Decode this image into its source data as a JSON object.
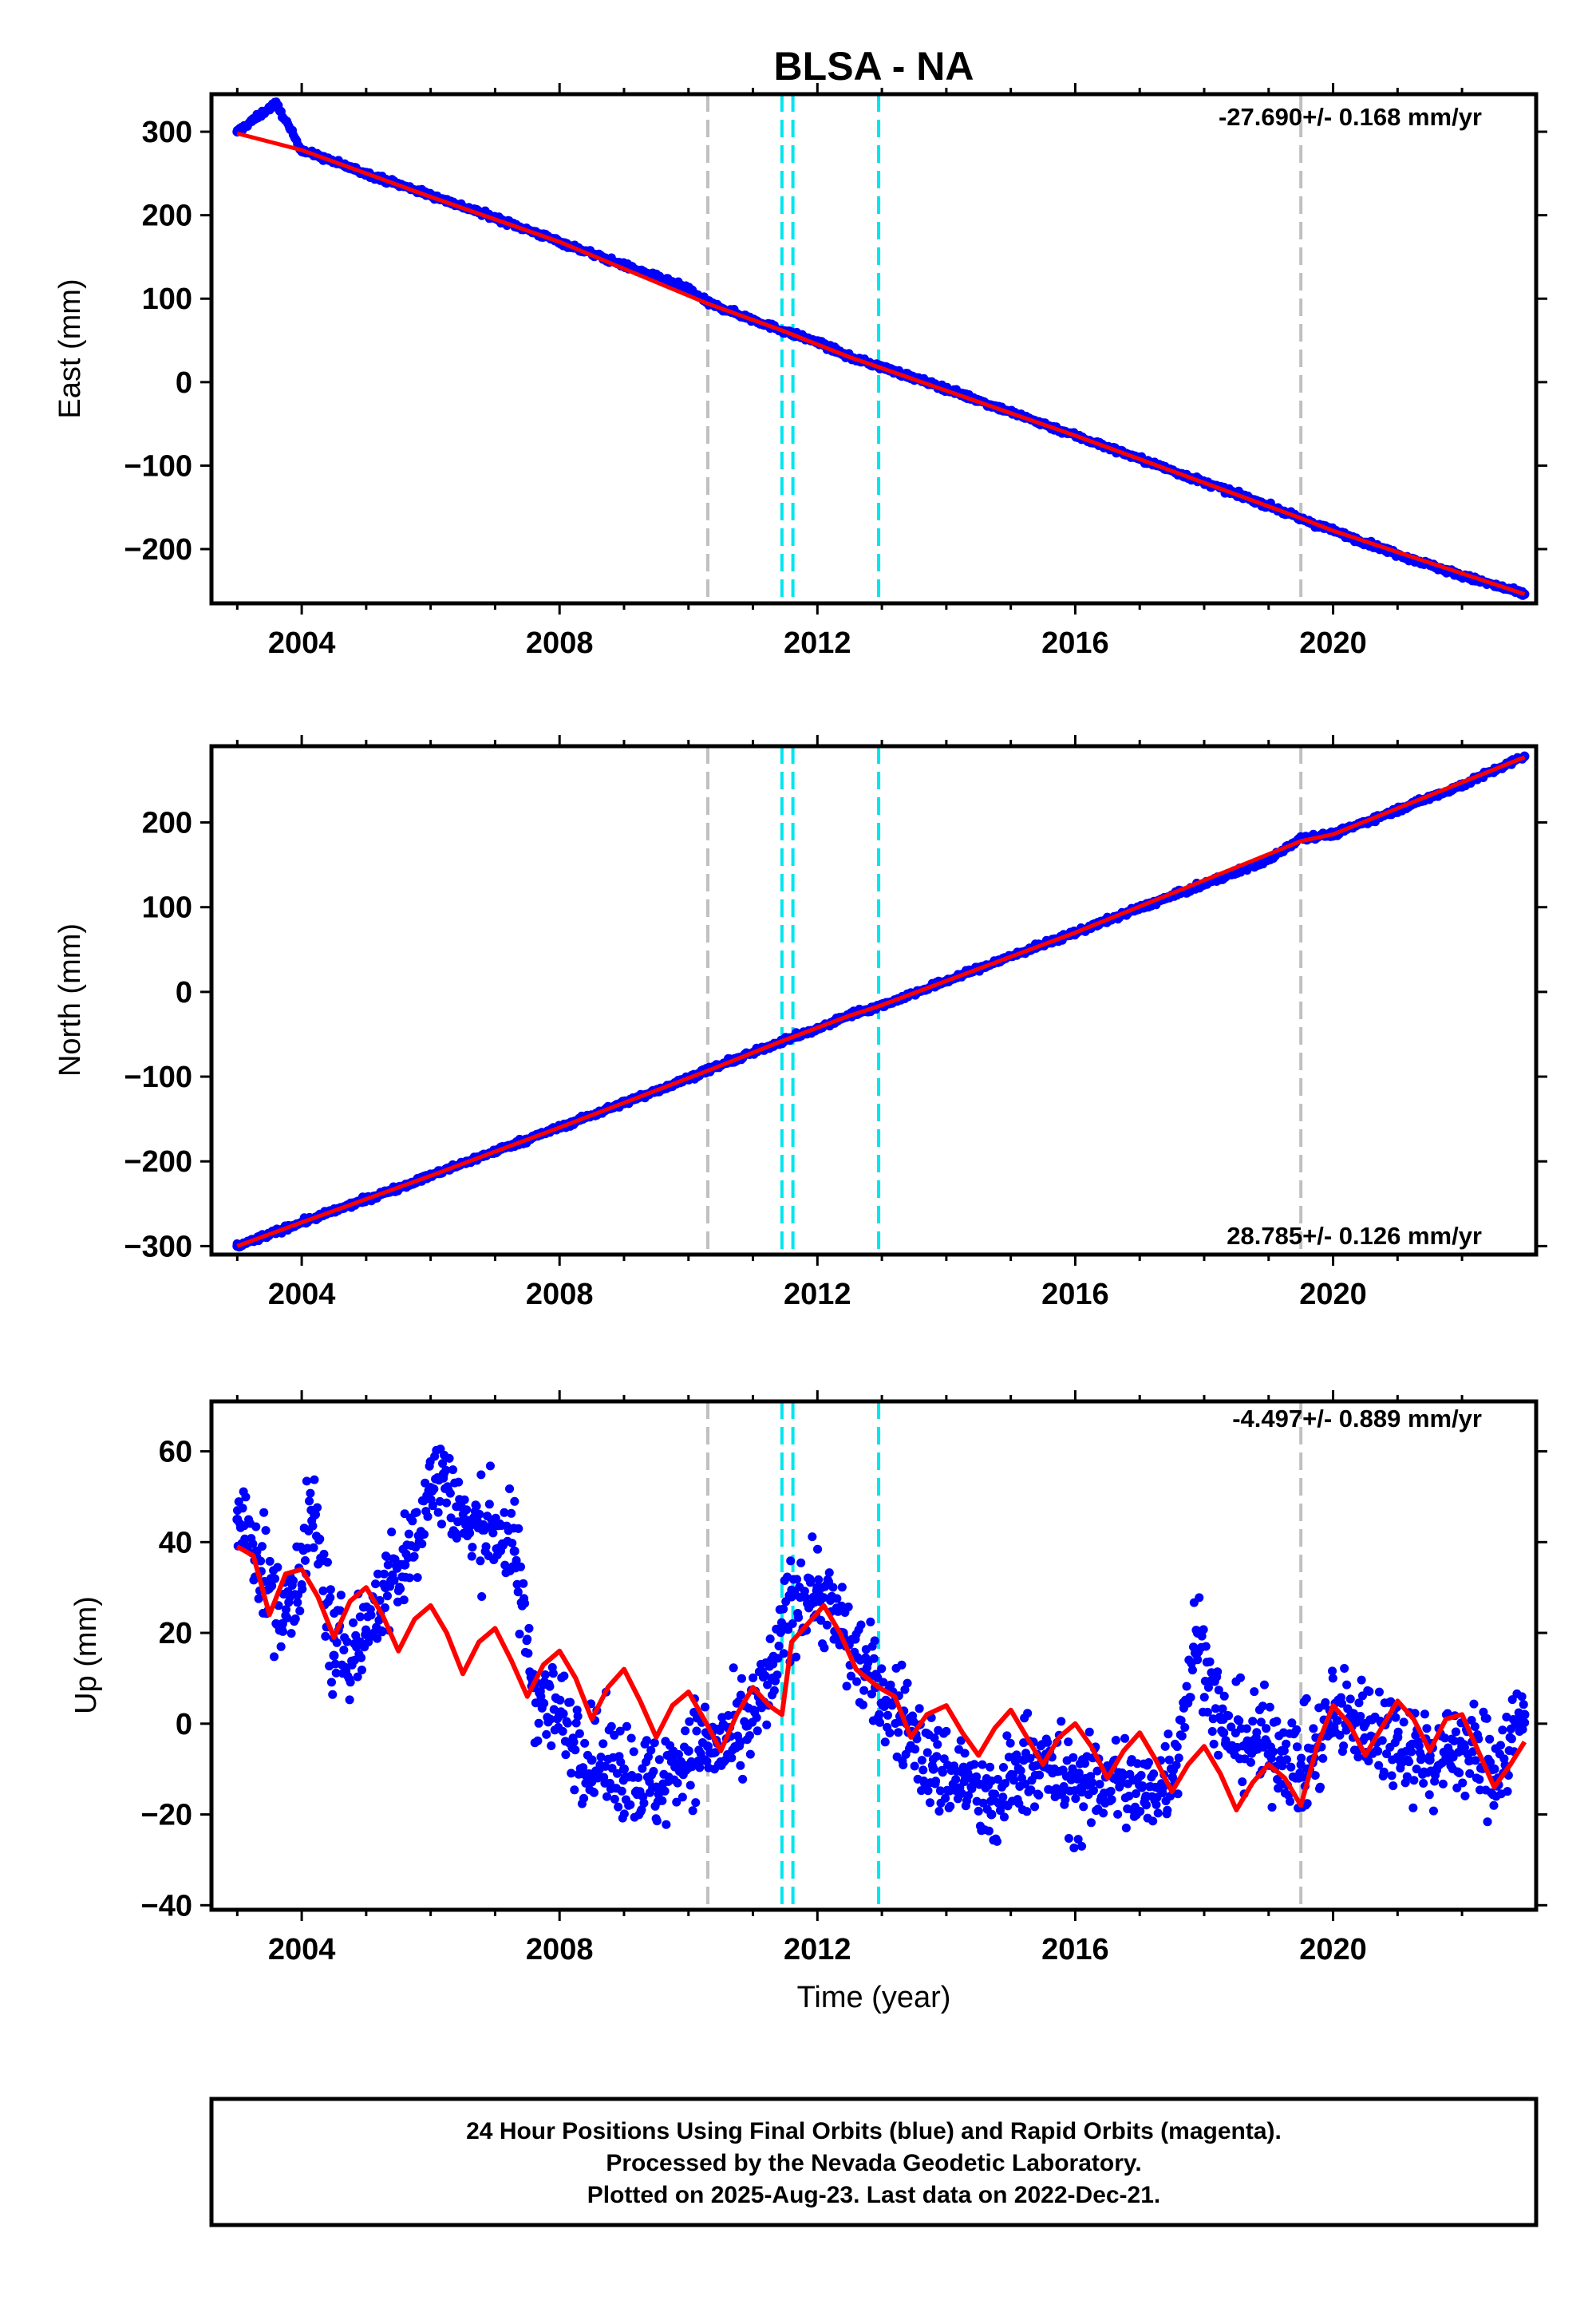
{
  "title": "BLSA - NA",
  "colors": {
    "final_orbits": "#0000ff",
    "model": "#ff0000",
    "gray_event": "#c0c0c0",
    "cyan_event": "#00e5ee"
  },
  "events": {
    "gray": [
      2010.3,
      2019.5
    ],
    "cyan": [
      2011.45,
      2011.62,
      2012.95
    ]
  },
  "chart_data": [
    {
      "type": "scatter",
      "panel": "east",
      "ylabel": "East (mm)",
      "rate_label": "-27.690+/- 0.168 mm/yr",
      "rate_position": "top-right",
      "xlim": [
        2002.6,
        2023.15
      ],
      "ylim": [
        -265,
        345
      ],
      "x_ticks": [
        "2004",
        "2008",
        "2012",
        "2016",
        "2020"
      ],
      "y_ticks": [
        "300",
        "200",
        "100",
        "0",
        "−100",
        "−200"
      ],
      "y_tick_values": [
        300,
        200,
        100,
        0,
        -100,
        -200
      ],
      "series": [
        {
          "name": "Final Orbits",
          "x": [
            2003.0,
            2003.6,
            2004.0,
            2005.0,
            2006.0,
            2007.0,
            2008.0,
            2009.0,
            2010.0,
            2010.3,
            2011.0,
            2011.45,
            2012.0,
            2012.5,
            2013.0,
            2014.0,
            2015.0,
            2016.0,
            2017.0,
            2018.0,
            2019.0,
            2019.5,
            2020.0,
            2021.0,
            2022.0,
            2022.97
          ],
          "y": [
            300,
            334,
            278,
            250,
            224,
            197,
            168,
            140,
            112,
            95,
            75,
            62,
            48,
            30,
            18,
            -8,
            -36,
            -64,
            -92,
            -120,
            -148,
            -164,
            -178,
            -206,
            -232,
            -254
          ]
        },
        {
          "name": "Model",
          "x": [
            2003.0,
            2004.0,
            2006.0,
            2008.0,
            2010.3,
            2011.45,
            2012.5,
            2012.95,
            2016.0,
            2019.5,
            2020.0,
            2022.97
          ],
          "y": [
            298,
            278,
            222,
            168,
            94,
            62,
            30,
            18,
            -64,
            -163,
            -178,
            -254
          ]
        }
      ]
    },
    {
      "type": "scatter",
      "panel": "north",
      "ylabel": "North (mm)",
      "rate_label": "28.785+/- 0.126 mm/yr",
      "rate_position": "bottom-right",
      "xlim": [
        2002.6,
        2023.15
      ],
      "ylim": [
        -310,
        290
      ],
      "x_ticks": [
        "2004",
        "2008",
        "2012",
        "2016",
        "2020"
      ],
      "y_ticks": [
        "200",
        "100",
        "0",
        "−100",
        "−200",
        "−300"
      ],
      "y_tick_values": [
        200,
        100,
        0,
        -100,
        -200,
        -300
      ],
      "series": [
        {
          "name": "Final Orbits",
          "x": [
            2003.0,
            2004.0,
            2005.0,
            2006.0,
            2007.0,
            2008.0,
            2009.0,
            2010.0,
            2010.3,
            2011.0,
            2011.45,
            2012.0,
            2012.5,
            2013.0,
            2014.0,
            2015.0,
            2016.0,
            2017.0,
            2018.0,
            2019.0,
            2019.5,
            2020.0,
            2021.0,
            2022.0,
            2022.97
          ],
          "y": [
            -300,
            -272,
            -245,
            -217,
            -188,
            -160,
            -131,
            -102,
            -92,
            -72,
            -58,
            -44,
            -27,
            -16,
            13,
            42,
            70,
            99,
            127,
            156,
            182,
            186,
            215,
            244,
            278
          ]
        },
        {
          "name": "Model",
          "x": [
            2003.0,
            2004.0,
            2006.0,
            2008.0,
            2010.3,
            2011.45,
            2012.5,
            2012.95,
            2016.0,
            2019.5,
            2020.0,
            2022.97
          ],
          "y": [
            -300,
            -272,
            -217,
            -160,
            -93,
            -58,
            -28,
            -17,
            70,
            178,
            186,
            277
          ]
        }
      ]
    },
    {
      "type": "scatter",
      "panel": "up",
      "ylabel": "Up (mm)",
      "xlabel": "Time (year)",
      "rate_label": "-4.497+/- 0.889 mm/yr",
      "rate_position": "top-right",
      "xlim": [
        2002.6,
        2023.15
      ],
      "ylim": [
        -41,
        71
      ],
      "x_ticks": [
        "2004",
        "2008",
        "2012",
        "2016",
        "2020"
      ],
      "y_ticks": [
        "60",
        "40",
        "20",
        "0",
        "−20",
        "−40"
      ],
      "y_tick_values": [
        60,
        40,
        20,
        0,
        -20,
        -40
      ],
      "series": [
        {
          "name": "Final Orbits",
          "x": [
            2003.0,
            2003.3,
            2003.7,
            2004.2,
            2004.5,
            2004.9,
            2005.3,
            2005.6,
            2006.0,
            2006.2,
            2006.6,
            2007.0,
            2007.3,
            2007.6,
            2008.0,
            2008.5,
            2009.0,
            2009.5,
            2010.0,
            2010.3,
            2010.8,
            2011.3,
            2011.6,
            2012.0,
            2012.4,
            2012.9,
            2013.3,
            2013.8,
            2014.3,
            2014.7,
            2015.2,
            2015.6,
            2016.1,
            2016.6,
            2017.1,
            2017.5,
            2017.9,
            2018.3,
            2018.8,
            2019.2,
            2019.6,
            2020.0,
            2020.5,
            2021.0,
            2021.5,
            2022.0,
            2022.5,
            2022.97
          ],
          "y": [
            45,
            38,
            22,
            46,
            15,
            18,
            30,
            35,
            52,
            55,
            42,
            44,
            38,
            8,
            2,
            -8,
            -10,
            -14,
            -6,
            -5,
            -4,
            10,
            28,
            30,
            20,
            8,
            2,
            -10,
            -12,
            -20,
            -8,
            -10,
            -15,
            -12,
            -16,
            -10,
            20,
            -2,
            -4,
            -6,
            -10,
            2,
            0,
            -3,
            -8,
            -5,
            -10,
            2
          ]
        },
        {
          "name": "Model",
          "x": [
            2003.0,
            2003.25,
            2003.5,
            2003.75,
            2004.0,
            2004.25,
            2004.5,
            2004.75,
            2005.0,
            2005.25,
            2005.5,
            2005.75,
            2006.0,
            2006.25,
            2006.5,
            2006.75,
            2007.0,
            2007.25,
            2007.5,
            2007.75,
            2008.0,
            2008.25,
            2008.5,
            2008.75,
            2009.0,
            2009.25,
            2009.5,
            2009.75,
            2010.0,
            2010.3,
            2010.5,
            2010.75,
            2011.0,
            2011.25,
            2011.45,
            2011.6,
            2011.85,
            2012.1,
            2012.35,
            2012.6,
            2012.95,
            2013.2,
            2013.45,
            2013.7,
            2014.0,
            2014.25,
            2014.5,
            2014.75,
            2015.0,
            2015.25,
            2015.5,
            2015.75,
            2016.0,
            2016.25,
            2016.5,
            2016.75,
            2017.0,
            2017.25,
            2017.5,
            2017.75,
            2018.0,
            2018.25,
            2018.5,
            2018.75,
            2019.0,
            2019.25,
            2019.5,
            2019.75,
            2020.0,
            2020.25,
            2020.5,
            2020.75,
            2021.0,
            2021.25,
            2021.5,
            2021.75,
            2022.0,
            2022.25,
            2022.5,
            2022.75,
            2022.97
          ],
          "y": [
            39,
            37,
            24,
            33,
            34,
            28,
            19,
            27,
            30,
            24,
            16,
            23,
            26,
            20,
            11,
            18,
            21,
            14,
            6,
            13,
            16,
            10,
            1,
            8,
            12,
            5,
            -3,
            4,
            7,
            -0.5,
            -6,
            2,
            8,
            4,
            2,
            18,
            22,
            26,
            20,
            12,
            8,
            6,
            -3,
            2,
            4,
            -2,
            -7,
            -1,
            3,
            -3,
            -9,
            -3,
            0,
            -5,
            -12,
            -6,
            -2,
            -8,
            -15,
            -9,
            -5,
            -11,
            -19,
            -13,
            -9,
            -12,
            -18,
            -5,
            4,
            0,
            -7,
            -1,
            5,
            1,
            -6,
            1,
            2,
            -6,
            -14,
            -9,
            -4
          ]
        }
      ]
    }
  ],
  "footer": {
    "line1": "24 Hour Positions Using Final Orbits (blue) and Rapid Orbits (magenta).",
    "line2": "Processed by the Nevada Geodetic Laboratory.",
    "line3": "Plotted on 2025-Aug-23. Last data on 2022-Dec-21."
  }
}
